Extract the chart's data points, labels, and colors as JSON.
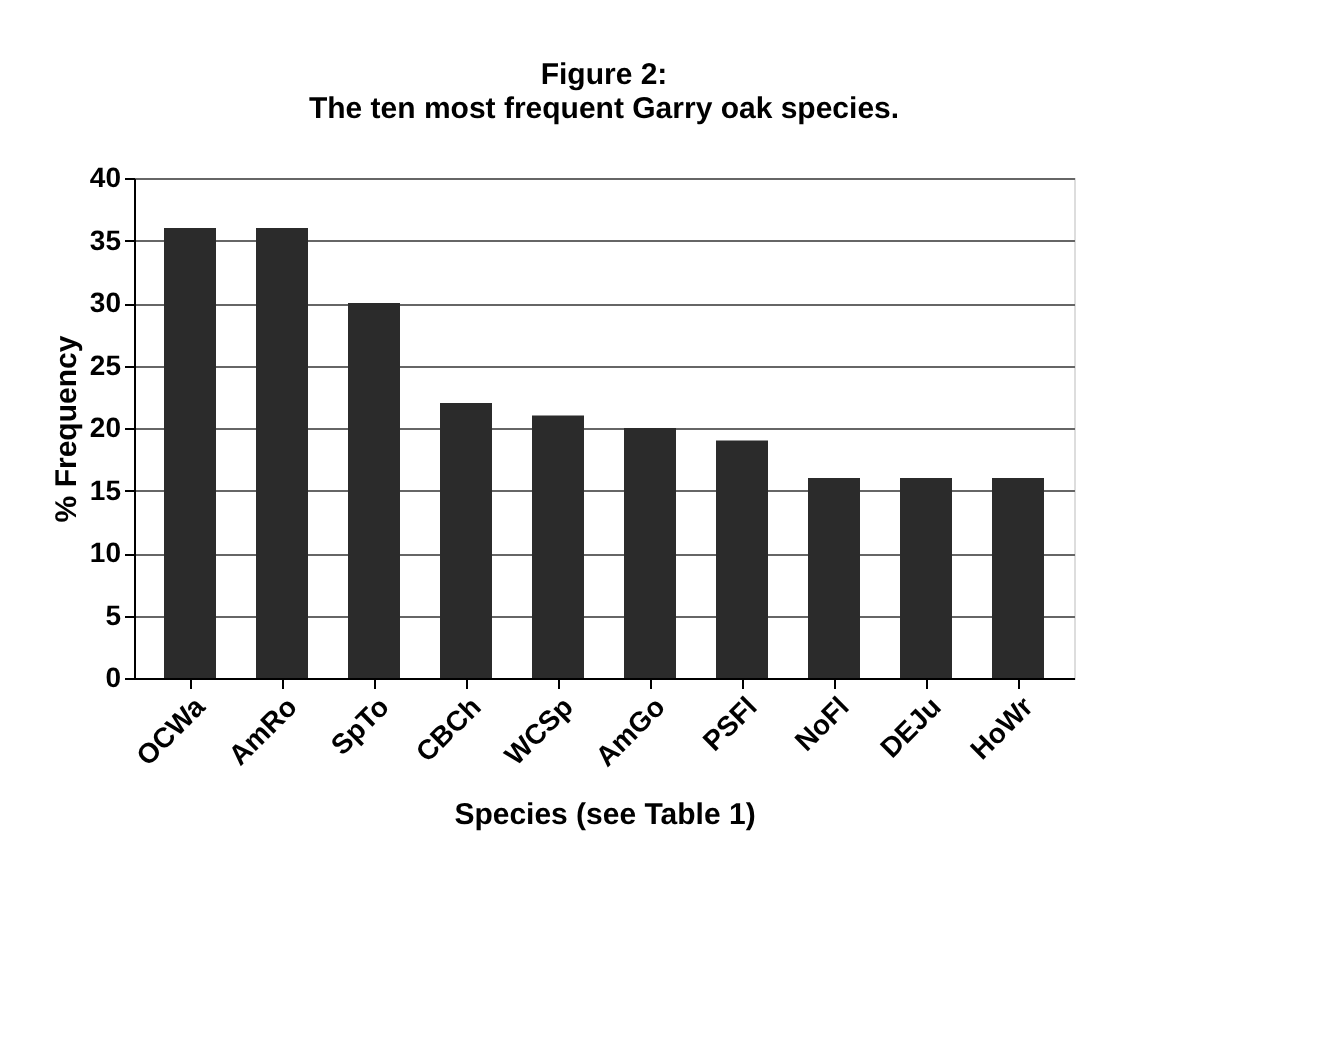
{
  "chart_data": {
    "type": "bar",
    "title": [
      "Figure 2:",
      "The ten most frequent Garry oak species."
    ],
    "xlabel": "Species (see Table 1)",
    "ylabel": "% Frequency",
    "categories": [
      "OCWa",
      "AmRo",
      "SpTo",
      "CBCh",
      "WCSp",
      "AmGo",
      "PSFl",
      "NoFl",
      "DEJu",
      "HoWr"
    ],
    "values": [
      36,
      36,
      30,
      22,
      21,
      20,
      19,
      16,
      16,
      16
    ],
    "color": "#2b2b2b",
    "ylim": [
      0,
      40
    ],
    "yticks": [
      0,
      5,
      10,
      15,
      20,
      25,
      30,
      35,
      40
    ],
    "grid": "y"
  }
}
